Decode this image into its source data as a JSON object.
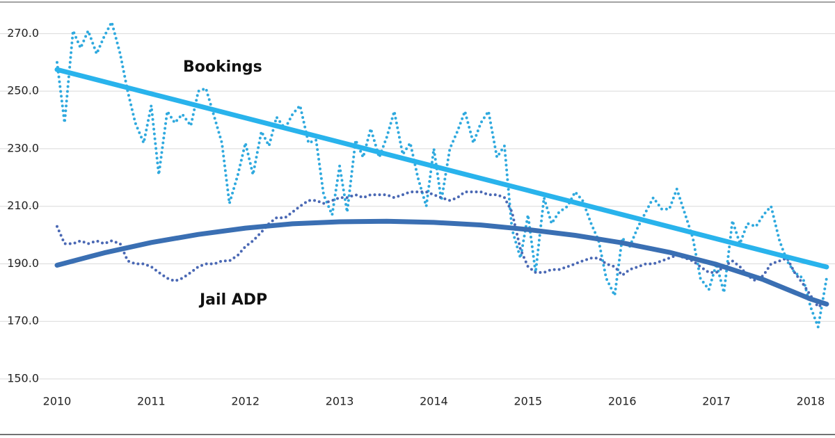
{
  "chart_data": {
    "type": "line",
    "x": [
      2010,
      2010.08,
      2010.17,
      2010.25,
      2010.33,
      2010.42,
      2010.5,
      2010.58,
      2010.67,
      2010.75,
      2010.83,
      2010.92,
      2011,
      2011.08,
      2011.17,
      2011.25,
      2011.33,
      2011.42,
      2011.5,
      2011.58,
      2011.67,
      2011.75,
      2011.83,
      2011.92,
      2012,
      2012.08,
      2012.17,
      2012.25,
      2012.33,
      2012.42,
      2012.5,
      2012.58,
      2012.67,
      2012.75,
      2012.83,
      2012.92,
      2013,
      2013.08,
      2013.17,
      2013.25,
      2013.33,
      2013.42,
      2013.5,
      2013.58,
      2013.67,
      2013.75,
      2013.83,
      2013.92,
      2014,
      2014.08,
      2014.17,
      2014.25,
      2014.33,
      2014.42,
      2014.5,
      2014.58,
      2014.67,
      2014.75,
      2014.83,
      2014.92,
      2015,
      2015.08,
      2015.17,
      2015.25,
      2015.33,
      2015.42,
      2015.5,
      2015.58,
      2015.67,
      2015.75,
      2015.83,
      2015.92,
      2016,
      2016.08,
      2016.17,
      2016.25,
      2016.33,
      2016.42,
      2016.5,
      2016.58,
      2016.67,
      2016.75,
      2016.83,
      2016.92,
      2017,
      2017.08,
      2017.17,
      2017.25,
      2017.33,
      2017.42,
      2017.5,
      2017.58,
      2017.67,
      2017.75,
      2017.83,
      2017.92,
      2018,
      2018.08,
      2018.17
    ],
    "xlim": [
      2010,
      2018.2
    ],
    "xticks": [
      2010,
      2011,
      2012,
      2013,
      2014,
      2015,
      2016,
      2017,
      2018
    ],
    "ylim": [
      150,
      280
    ],
    "yticks": [
      {
        "value": 150,
        "label": "150.0"
      },
      {
        "value": 170,
        "label": "170.0"
      },
      {
        "value": 190,
        "label": "190.0"
      },
      {
        "value": 210,
        "label": "210.0"
      },
      {
        "value": 230,
        "label": "230.0"
      },
      {
        "value": 250,
        "label": "250.0"
      },
      {
        "value": 270,
        "label": "270.0"
      }
    ],
    "grid": true,
    "series": [
      {
        "name": "Bookings",
        "color": "#2fa9de",
        "style": "dotted",
        "values": [
          260,
          239,
          271,
          265,
          271,
          263,
          269,
          274,
          263,
          250,
          239,
          232,
          245,
          221,
          243,
          239,
          242,
          238,
          250,
          251,
          241,
          232,
          211,
          221,
          232,
          221,
          236,
          231,
          241,
          237,
          242,
          245,
          232,
          233,
          214,
          207,
          224,
          208,
          233,
          227,
          237,
          227,
          234,
          243,
          228,
          232,
          220,
          210,
          230,
          212,
          230,
          236,
          243,
          232,
          239,
          243,
          227,
          231,
          202,
          192,
          207,
          187,
          213,
          204,
          208,
          210,
          215,
          212,
          204,
          198,
          185,
          179,
          199,
          196,
          203,
          208,
          213,
          209,
          209,
          216,
          207,
          199,
          185,
          181,
          190,
          180,
          205,
          197,
          204,
          203,
          207,
          210,
          198,
          191,
          187,
          185,
          175,
          168,
          185
        ]
      },
      {
        "name": "Jail ADP",
        "color": "#4a68b4",
        "style": "dotted",
        "values": [
          203,
          197,
          197,
          198,
          197,
          198,
          197,
          198,
          197,
          191,
          190,
          190,
          189,
          187,
          185,
          184,
          185,
          187,
          189,
          190,
          190,
          191,
          191,
          193,
          196,
          198,
          201,
          204,
          206,
          206,
          208,
          210,
          212,
          212,
          211,
          212,
          213,
          213,
          214,
          213,
          214,
          214,
          214,
          213,
          214,
          215,
          215,
          215,
          214,
          213,
          212,
          213,
          215,
          215,
          215,
          214,
          214,
          213,
          208,
          195,
          189,
          187,
          187,
          188,
          188,
          189,
          190,
          191,
          192,
          192,
          190,
          189,
          186,
          188,
          189,
          190,
          190,
          191,
          192,
          193,
          192,
          191,
          189,
          187,
          187,
          189,
          191,
          189,
          186,
          184,
          186,
          190,
          191,
          192,
          187,
          183,
          179,
          175,
          177
        ]
      },
      {
        "color": "#29b3ec",
        "style": "solid",
        "x": [
          2010,
          2011,
          2012,
          2013,
          2014,
          2015,
          2016,
          2017,
          2018,
          2018.17
        ],
        "values": [
          257.5,
          249.1,
          240.7,
          232.3,
          223.9,
          215.5,
          207.1,
          198.7,
          190.3,
          188.9
        ]
      },
      {
        "color": "#3a6fb3",
        "style": "solid",
        "x": [
          2010,
          2010.5,
          2011,
          2011.5,
          2012,
          2012.5,
          2013,
          2013.5,
          2014,
          2014.5,
          2015,
          2015.5,
          2016,
          2016.5,
          2017,
          2017.5,
          2018,
          2018.17
        ],
        "values": [
          189.5,
          193.8,
          197.4,
          200.2,
          202.4,
          203.9,
          204.6,
          204.8,
          204.4,
          203.5,
          201.9,
          199.9,
          197.3,
          194.0,
          189.8,
          184.5,
          177.8,
          176
        ]
      }
    ]
  }
}
